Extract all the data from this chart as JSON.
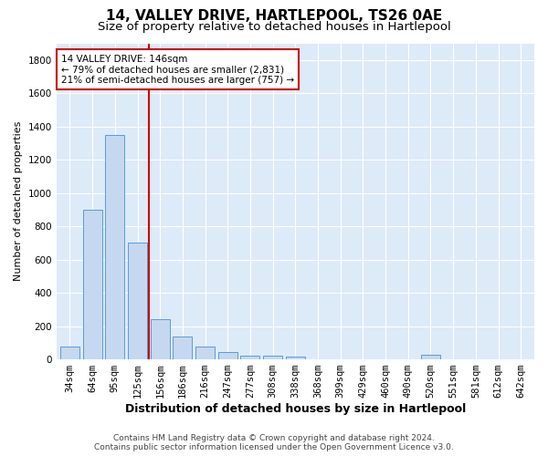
{
  "title1": "14, VALLEY DRIVE, HARTLEPOOL, TS26 0AE",
  "title2": "Size of property relative to detached houses in Hartlepool",
  "xlabel": "Distribution of detached houses by size in Hartlepool",
  "ylabel": "Number of detached properties",
  "categories": [
    "34sqm",
    "64sqm",
    "95sqm",
    "125sqm",
    "156sqm",
    "186sqm",
    "216sqm",
    "247sqm",
    "277sqm",
    "308sqm",
    "338sqm",
    "368sqm",
    "399sqm",
    "429sqm",
    "460sqm",
    "490sqm",
    "520sqm",
    "551sqm",
    "581sqm",
    "612sqm",
    "642sqm"
  ],
  "values": [
    75,
    900,
    1350,
    700,
    240,
    135,
    75,
    45,
    25,
    20,
    15,
    0,
    0,
    0,
    0,
    0,
    30,
    0,
    0,
    0,
    0
  ],
  "bar_color": "#c5d8f0",
  "bar_edge_color": "#5b9bd5",
  "red_line_x": 3.5,
  "red_line_label": "14 VALLEY DRIVE: 146sqm",
  "annotation_line2": "← 79% of detached houses are smaller (2,831)",
  "annotation_line3": "21% of semi-detached houses are larger (757) →",
  "annotation_box_color": "#ffffff",
  "annotation_box_edge": "#cc0000",
  "red_line_color": "#cc0000",
  "ylim": [
    0,
    1900
  ],
  "yticks": [
    0,
    200,
    400,
    600,
    800,
    1000,
    1200,
    1400,
    1600,
    1800
  ],
  "footer1": "Contains HM Land Registry data © Crown copyright and database right 2024.",
  "footer2": "Contains public sector information licensed under the Open Government Licence v3.0.",
  "bg_color": "#ffffff",
  "plot_bg_color": "#ddeaf8",
  "grid_color": "#ffffff",
  "title1_fontsize": 11,
  "title2_fontsize": 9.5,
  "xlabel_fontsize": 9,
  "ylabel_fontsize": 8,
  "tick_fontsize": 7.5,
  "annot_fontsize": 7.5,
  "footer_fontsize": 6.5
}
